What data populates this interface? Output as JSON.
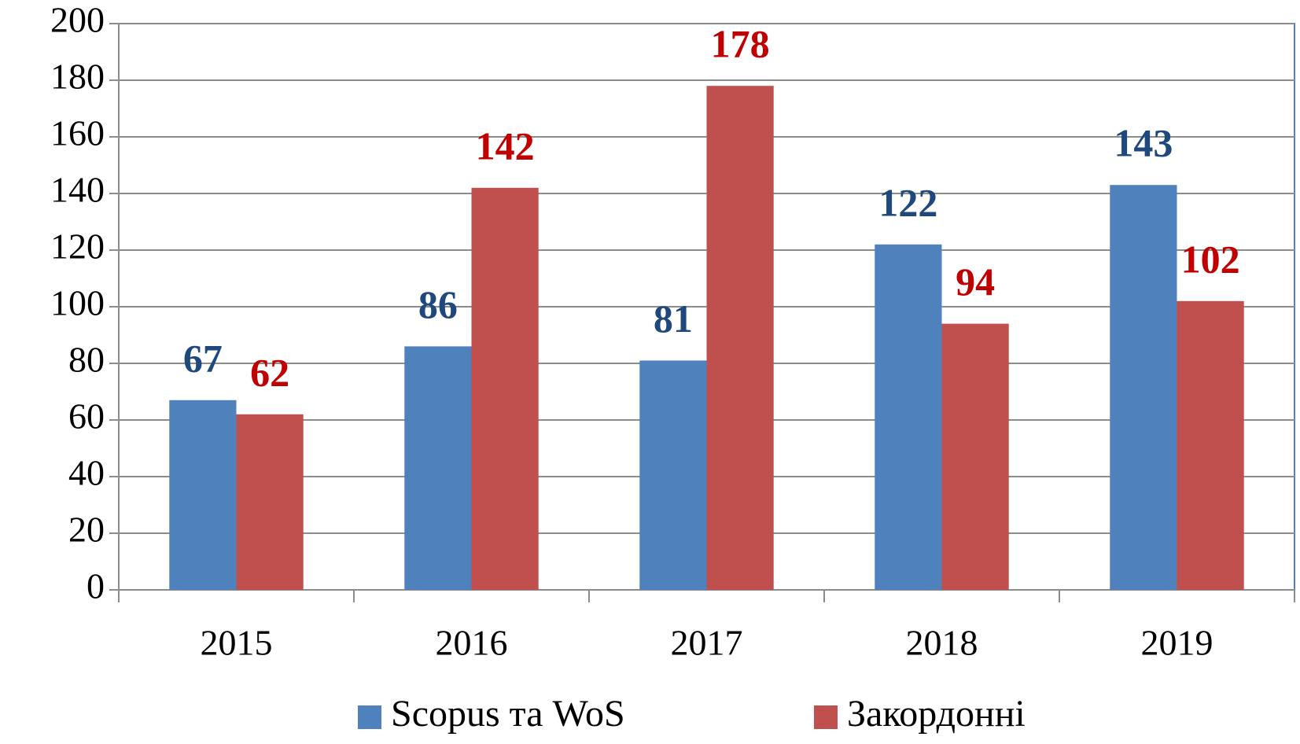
{
  "chart_data": {
    "type": "bar",
    "categories": [
      "2015",
      "2016",
      "2017",
      "2018",
      "2019"
    ],
    "series": [
      {
        "name": "Scopus та WoS",
        "color": "#4f81bd",
        "label_color": "#1f497d",
        "values": [
          67,
          86,
          81,
          122,
          143
        ]
      },
      {
        "name": "Закордонні",
        "color": "#c0504d",
        "label_color": "#c00000",
        "values": [
          62,
          142,
          178,
          94,
          102
        ]
      }
    ],
    "ylim": [
      0,
      200
    ],
    "yticks": [
      0,
      20,
      40,
      60,
      80,
      100,
      120,
      140,
      160,
      180,
      200
    ],
    "grid": true
  }
}
